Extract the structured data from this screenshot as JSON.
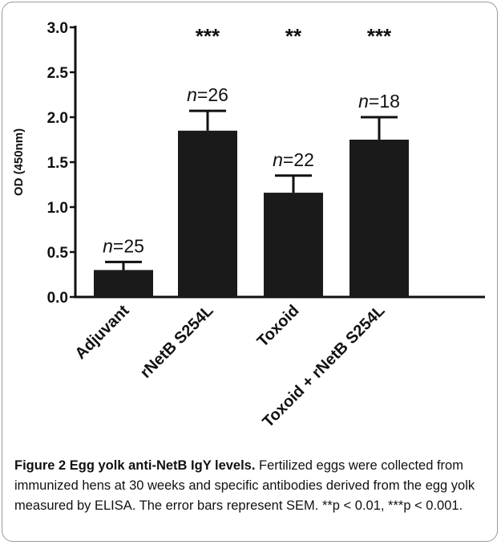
{
  "chart_data": {
    "type": "bar",
    "categories": [
      "Adjuvant",
      "rNetB S254L",
      "Toxoid",
      "Toxoid + rNetB S254L"
    ],
    "values": [
      0.3,
      1.85,
      1.16,
      1.75
    ],
    "error_sem": [
      0.09,
      0.22,
      0.19,
      0.25
    ],
    "n_labels": [
      "n=25",
      "n=26",
      "n=22",
      "n=18"
    ],
    "significance": [
      "",
      "***",
      "**",
      "***"
    ],
    "ylabel": "OD (450nm)",
    "xlabel": "",
    "ylim": [
      0,
      3.0
    ],
    "yticks": [
      "0.0",
      "0.5",
      "1.0",
      "1.5",
      "2.0",
      "2.5",
      "3.0"
    ],
    "bar_color": "#1a1a1a",
    "grid": false
  },
  "caption": {
    "title": "Figure 2 Egg yolk anti-NetB IgY levels.",
    "body": " Fertilized eggs were collected from immunized hens at 30 weeks and specific antibodies derived from the egg yolk measured by ELISA. The error bars represent SEM. **p < 0.01, ***p < 0.001."
  }
}
